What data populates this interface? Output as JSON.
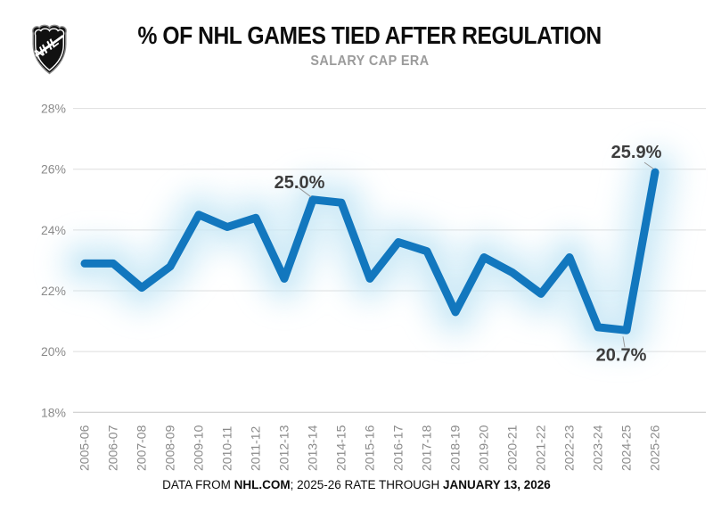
{
  "header": {
    "title": "% OF NHL GAMES TIED AFTER REGULATION",
    "subtitle": "SALARY CAP ERA",
    "logo": {
      "icon": "nhl-shield-logo",
      "text": "NHL"
    }
  },
  "chart_data": {
    "type": "line",
    "title": "% OF NHL GAMES TIED AFTER REGULATION",
    "subtitle": "SALARY CAP ERA",
    "categories": [
      "2005-06",
      "2006-07",
      "2007-08",
      "2008-09",
      "2009-10",
      "2010-11",
      "2011-12",
      "2012-13",
      "2013-14",
      "2014-15",
      "2015-16",
      "2016-17",
      "2017-18",
      "2018-19",
      "2019-20",
      "2020-21",
      "2021-22",
      "2022-23",
      "2023-24",
      "2024-25",
      "2025-26"
    ],
    "series": [
      {
        "name": "% of games tied after regulation",
        "values": [
          22.9,
          22.9,
          22.1,
          22.8,
          24.5,
          24.1,
          24.4,
          22.4,
          25.0,
          24.9,
          22.4,
          23.6,
          23.3,
          21.3,
          23.1,
          22.6,
          21.9,
          23.1,
          20.8,
          20.7,
          25.9
        ]
      }
    ],
    "xlabel": "",
    "ylabel": "",
    "ylim": [
      18,
      28
    ],
    "yticks": [
      18,
      20,
      22,
      24,
      26,
      28
    ],
    "ytick_format": "{v}%",
    "grid": true,
    "legend": "none",
    "annotations": [
      {
        "category": "2013-14",
        "label": "25.0%"
      },
      {
        "category": "2024-25",
        "label": "20.7%"
      },
      {
        "category": "2025-26",
        "label": "25.9%"
      }
    ],
    "line_color": "#1277be",
    "glow_color": "#c9e8f6",
    "grid_color": "#dedede",
    "axis_color": "#c6c6c6",
    "tick_label_color": "#8a8a8a",
    "annotation_color": "#3d3d3d"
  },
  "footer": {
    "segments": [
      {
        "text": "DATA FROM ",
        "bold": false
      },
      {
        "text": "NHL.COM",
        "bold": true
      },
      {
        "text": "; 2025-26 RATE THROUGH ",
        "bold": false
      },
      {
        "text": "JANUARY 13, 2026",
        "bold": true
      }
    ]
  }
}
